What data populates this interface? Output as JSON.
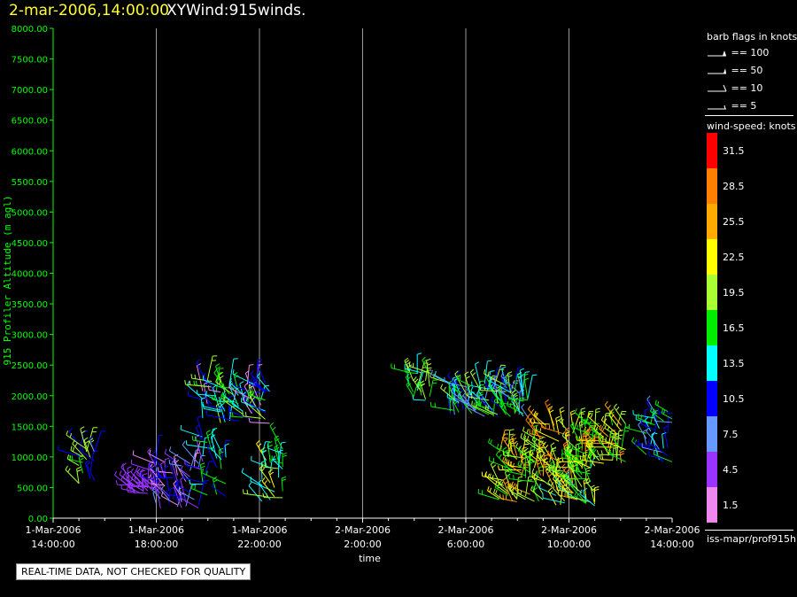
{
  "header": {
    "datetime": "2-mar-2006,14:00:00",
    "title": "XYWind:915winds."
  },
  "chart_data": {
    "type": "scatter",
    "title": "XYWind:915winds.",
    "xlabel": "time",
    "ylabel": "915 Profiler Altitude (m agl)",
    "ylim": [
      0,
      8000
    ],
    "y_ticks": [
      "0.00",
      "500.00",
      "1000.00",
      "1500.00",
      "2000.00",
      "2500.00",
      "3000.00",
      "3500.00",
      "4000.00",
      "4500.00",
      "5000.00",
      "5500.00",
      "6000.00",
      "6500.00",
      "7000.00",
      "7500.00",
      "8000.00"
    ],
    "x_hours_range": [
      0,
      24
    ],
    "x_ticks": [
      {
        "hour": 0,
        "date": "1-Mar-2006",
        "time": "14:00:00"
      },
      {
        "hour": 4,
        "date": "1-Mar-2006",
        "time": "18:00:00"
      },
      {
        "hour": 8,
        "date": "1-Mar-2006",
        "time": "22:00:00"
      },
      {
        "hour": 12,
        "date": "2-Mar-2006",
        "time": "2:00:00"
      },
      {
        "hour": 16,
        "date": "2-Mar-2006",
        "time": "6:00:00"
      },
      {
        "hour": 20,
        "date": "2-Mar-2006",
        "time": "10:00:00"
      },
      {
        "hour": 24,
        "date": "2-Mar-2006",
        "time": "14:00:00"
      }
    ],
    "grid": true,
    "clusters": [
      {
        "h0": 1.0,
        "h1": 1.6,
        "alt0": 500,
        "alt1": 1200,
        "speeds": [
          10.5,
          16.5,
          19.5
        ]
      },
      {
        "h0": 3.0,
        "h1": 4.0,
        "alt0": 400,
        "alt1": 550,
        "speeds": [
          4.5
        ]
      },
      {
        "h0": 4.0,
        "h1": 5.8,
        "alt0": 150,
        "alt1": 950,
        "speeds": [
          1.5,
          4.5,
          7.5,
          10.5
        ]
      },
      {
        "h0": 5.8,
        "h1": 6.7,
        "alt0": 300,
        "alt1": 1350,
        "speeds": [
          10.5,
          13.5,
          16.5
        ]
      },
      {
        "h0": 5.8,
        "h1": 8.4,
        "alt0": 1550,
        "alt1": 2250,
        "speeds": [
          10.5,
          13.5,
          16.5,
          19.5,
          1.5
        ]
      },
      {
        "h0": 8.1,
        "h1": 8.9,
        "alt0": 250,
        "alt1": 1150,
        "speeds": [
          13.5,
          16.5,
          19.5,
          22.5
        ]
      },
      {
        "h0": 13.8,
        "h1": 14.6,
        "alt0": 1900,
        "alt1": 2400,
        "speeds": [
          13.5,
          16.5,
          19.5
        ]
      },
      {
        "h0": 15.4,
        "h1": 18.4,
        "alt0": 1650,
        "alt1": 2200,
        "speeds": [
          7.5,
          10.5,
          13.5,
          16.5,
          19.5
        ]
      },
      {
        "h0": 17.3,
        "h1": 19.0,
        "alt0": 250,
        "alt1": 1150,
        "speeds": [
          16.5,
          19.5,
          22.5,
          25.5
        ]
      },
      {
        "h0": 18.9,
        "h1": 20.5,
        "alt0": 300,
        "alt1": 1550,
        "speeds": [
          19.5,
          22.5,
          25.5,
          28.5
        ]
      },
      {
        "h0": 19.5,
        "h1": 21.0,
        "alt0": 200,
        "alt1": 900,
        "speeds": [
          16.5,
          19.5,
          13.5,
          22.5
        ]
      },
      {
        "h0": 20.5,
        "h1": 22.2,
        "alt0": 850,
        "alt1": 1550,
        "speeds": [
          19.5,
          22.5,
          25.5,
          16.5
        ]
      },
      {
        "h0": 23.0,
        "h1": 24.0,
        "alt0": 850,
        "alt1": 1750,
        "speeds": [
          7.5,
          10.5,
          13.5,
          16.5
        ]
      }
    ]
  },
  "legend": {
    "barb_title": "barb flags in knots",
    "barbs": [
      {
        "label": "== 100"
      },
      {
        "label": "== 50"
      },
      {
        "label": "== 10"
      },
      {
        "label": "== 5"
      }
    ],
    "speed_title": "wind-speed: knots",
    "colorbar": [
      {
        "label": "31.5",
        "color": "#ff0000"
      },
      {
        "label": "28.5",
        "color": "#ff7f00"
      },
      {
        "label": "25.5",
        "color": "#ffaa00"
      },
      {
        "label": "22.5",
        "color": "#ffff00"
      },
      {
        "label": "19.5",
        "color": "#aaff33"
      },
      {
        "label": "16.5",
        "color": "#00ee00"
      },
      {
        "label": "13.5",
        "color": "#00ffff"
      },
      {
        "label": "10.5",
        "color": "#0000ff"
      },
      {
        "label": "7.5",
        "color": "#6699ff"
      },
      {
        "label": "4.5",
        "color": "#9933ff"
      },
      {
        "label": "1.5",
        "color": "#ee88ee"
      }
    ],
    "source": "iss-mapr/prof915h"
  },
  "footer": {
    "quality_note": "REAL-TIME DATA, NOT CHECKED FOR QUALITY"
  }
}
